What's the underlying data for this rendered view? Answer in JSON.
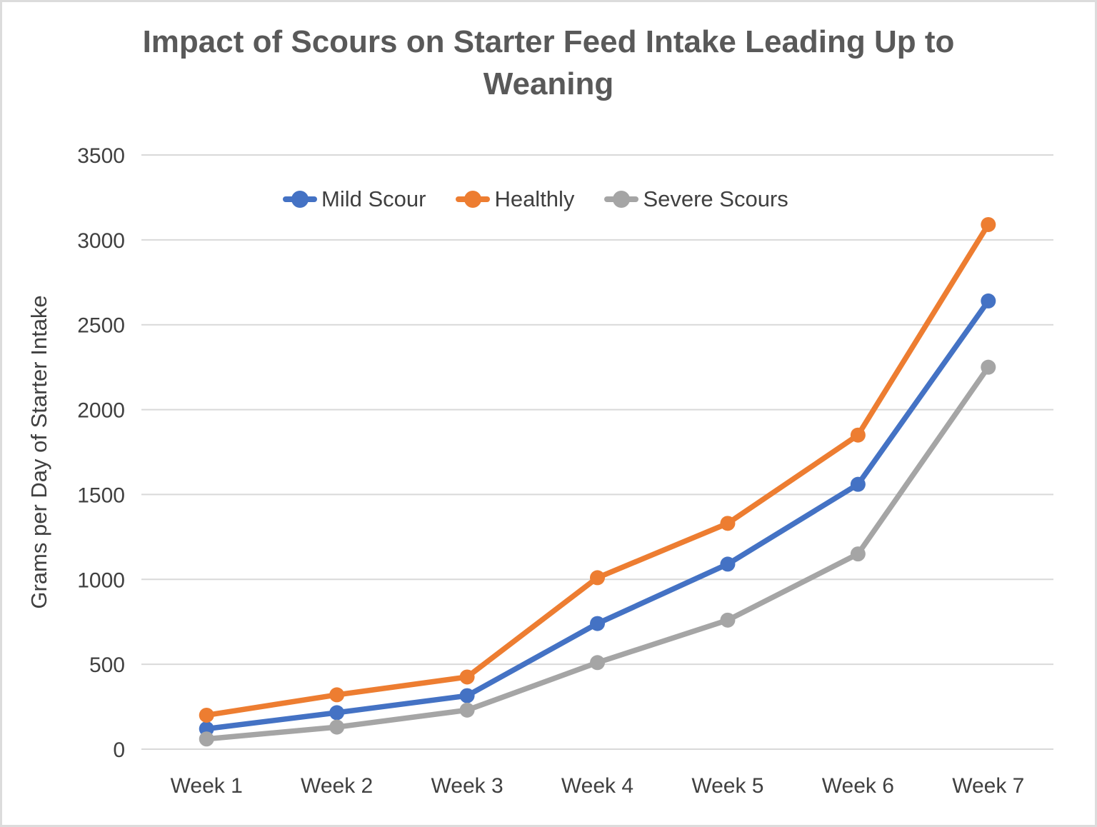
{
  "page": {
    "background_color": "#ffffff",
    "border_color": "#dcdcdc"
  },
  "chart_data": {
    "type": "line",
    "title": "Impact of Scours on Starter Feed Intake Leading Up to Weaning",
    "categories": [
      "Week 1",
      "Week 2",
      "Week 3",
      "Week 4",
      "Week 5",
      "Week 6",
      "Week 7"
    ],
    "series": [
      {
        "name": "Mild Scour",
        "color": "#4472C4",
        "values": [
          120,
          215,
          315,
          740,
          1090,
          1560,
          2640
        ]
      },
      {
        "name": "Healthly",
        "color": "#ED7D31",
        "values": [
          200,
          320,
          425,
          1010,
          1330,
          1850,
          3090
        ]
      },
      {
        "name": "Severe Scours",
        "color": "#A5A5A5",
        "values": [
          60,
          130,
          230,
          510,
          760,
          1150,
          2250
        ]
      }
    ],
    "xlabel": "",
    "ylabel": "Grams per Day of Starter Intake",
    "ylim": [
      0,
      3500
    ],
    "ytick_step": 500,
    "yticks": [
      "0",
      "500",
      "1000",
      "1500",
      "2000",
      "2500",
      "3000",
      "3500"
    ],
    "grid": "horizontal",
    "gridline_color": "#d9d9d9",
    "legend_position": "top-inside-left",
    "title_color": "#595959",
    "tick_color": "#404040",
    "marker_style": "circle"
  }
}
